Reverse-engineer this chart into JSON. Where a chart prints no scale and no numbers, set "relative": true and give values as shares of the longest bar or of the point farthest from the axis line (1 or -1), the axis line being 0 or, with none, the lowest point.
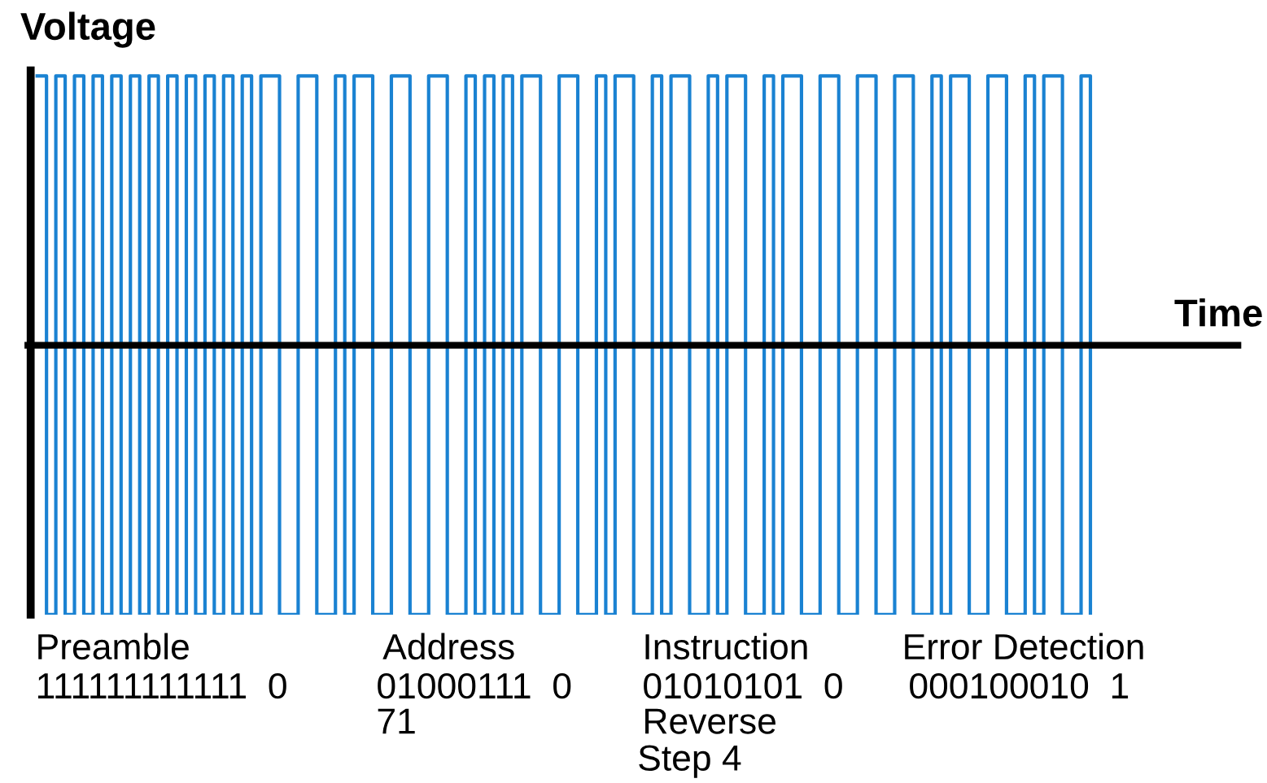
{
  "chart_data": {
    "type": "step",
    "relative": true,
    "xlabel": "Time",
    "ylabel": "Voltage",
    "categories": [
      null,
      null,
      null,
      null,
      null,
      null,
      null,
      null,
      null,
      null,
      null,
      null,
      null,
      null,
      null,
      null,
      null,
      null,
      null,
      null,
      null,
      null,
      null,
      null,
      null,
      null,
      null,
      null,
      null,
      null,
      null,
      null,
      null,
      null,
      null,
      null,
      null,
      null,
      null,
      null,
      null,
      null,
      null,
      null,
      null,
      null,
      null,
      null,
      null,
      null,
      null,
      null,
      null,
      null,
      null,
      null,
      null,
      null,
      null,
      null,
      null,
      null,
      null,
      null,
      null,
      null,
      null,
      null,
      null,
      null,
      null,
      null,
      null,
      null,
      null,
      null,
      null,
      null,
      null,
      null,
      null,
      null,
      null,
      null,
      null,
      null,
      null,
      null,
      null,
      null,
      null,
      null,
      null,
      null,
      null,
      null,
      null,
      null,
      null,
      null,
      null,
      null,
      null,
      null,
      null,
      null,
      null,
      null,
      null,
      null,
      null,
      null,
      null,
      null
    ],
    "series": [
      {
        "color": "#1a82d2",
        "values": [
          1,
          -1,
          1,
          -1,
          1,
          -1,
          1,
          -1,
          1,
          -1,
          1,
          -1,
          1,
          -1,
          1,
          -1,
          1,
          -1,
          1,
          -1,
          1,
          -1,
          1,
          -1,
          1,
          1,
          -1,
          -1,
          1,
          1,
          -1,
          -1,
          1,
          -1,
          1,
          1,
          -1,
          -1,
          1,
          1,
          -1,
          -1,
          1,
          1,
          -1,
          -1,
          1,
          -1,
          1,
          -1,
          1,
          -1,
          1,
          1,
          -1,
          -1,
          1,
          1,
          -1,
          -1,
          1,
          -1,
          1,
          1,
          -1,
          -1,
          1,
          -1,
          1,
          1,
          -1,
          -1,
          1,
          -1,
          1,
          1,
          -1,
          -1,
          1,
          -1,
          1,
          1,
          -1,
          -1,
          1,
          1,
          -1,
          -1,
          1,
          1,
          -1,
          -1,
          1,
          1,
          -1,
          -1,
          1,
          -1,
          1,
          1,
          -1,
          -1,
          1,
          1,
          -1,
          -1,
          1,
          -1,
          1,
          1,
          -1,
          -1,
          1,
          -1
        ]
      }
    ],
    "annotations": [
      "Preamble",
      "111111111111  0",
      "Address",
      "01000111  0",
      "71",
      "Instruction",
      "01010101  0",
      "Reverse",
      "Step 4",
      "Error Detection",
      "000100010  1"
    ]
  }
}
